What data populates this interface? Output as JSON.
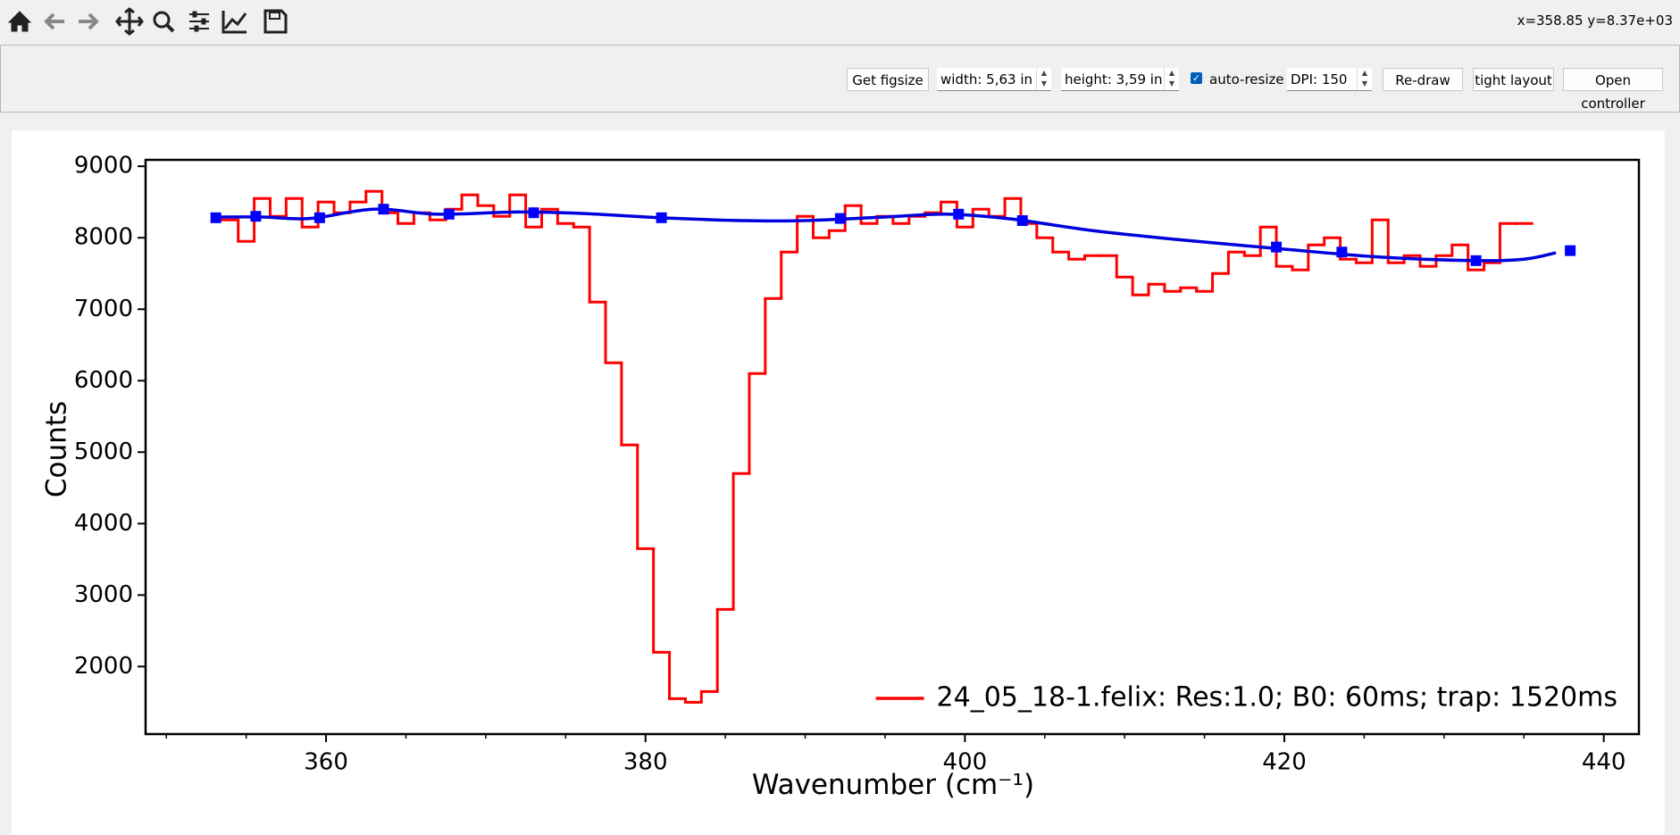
{
  "toolbar": {
    "coordinates": "x=358.85 y=8.37e+03"
  },
  "controls": {
    "get_figsize": "Get figsize",
    "width": "width: 5,63 in",
    "height": "height: 3,59 in",
    "auto_resize": "auto-resize",
    "dpi": "DPI: 150",
    "redraw": "Re-draw",
    "tight_layout": "tight layout",
    "open_controller": "Open controller"
  },
  "chart_data": {
    "type": "line",
    "xlabel": "Wavenumber (cm⁻¹)",
    "ylabel": "Counts",
    "xlim": [
      348.7,
      442.2
    ],
    "xticks": [
      360,
      380,
      400,
      420,
      440
    ],
    "xminorticks": [
      350,
      355,
      365,
      370,
      375,
      385,
      390,
      395,
      405,
      410,
      415,
      425,
      430,
      435
    ],
    "ylim": [
      1055,
      9090
    ],
    "yticks": [
      2000,
      3000,
      4000,
      5000,
      6000,
      7000,
      8000,
      9000
    ],
    "legend": "lower right",
    "series": [
      {
        "name": "24_05_18-1.felix: Res:1.0; B0: 60ms; trap: 1520ms",
        "color": "#ff0000",
        "style": "step",
        "x": [
          354,
          355,
          356,
          357,
          358,
          359,
          360,
          361,
          362,
          363,
          364,
          365,
          366,
          367,
          368,
          369,
          370,
          371,
          372,
          373,
          374,
          375,
          376,
          377,
          378,
          379,
          380,
          381,
          382,
          383,
          384,
          385,
          386,
          387,
          388,
          389,
          390,
          391,
          392,
          393,
          394,
          395,
          396,
          397,
          398,
          399,
          400,
          401,
          402,
          403,
          404,
          405,
          406,
          407,
          408,
          409,
          410,
          411,
          412,
          413,
          414,
          415,
          416,
          417,
          418,
          419,
          420,
          421,
          422,
          423,
          424,
          425,
          426,
          427,
          428,
          429,
          430,
          431,
          432,
          433,
          434,
          435
        ],
        "values": [
          8250,
          7950,
          8550,
          8300,
          8550,
          8150,
          8500,
          8350,
          8500,
          8650,
          8350,
          8200,
          8350,
          8250,
          8400,
          8600,
          8450,
          8300,
          8600,
          8150,
          8400,
          8200,
          8150,
          7100,
          6250,
          5100,
          3650,
          2200,
          1550,
          1500,
          1650,
          2800,
          4700,
          6100,
          7150,
          7800,
          8300,
          8000,
          8100,
          8450,
          8200,
          8300,
          8200,
          8300,
          8350,
          8500,
          8150,
          8400,
          8300,
          8550,
          8200,
          8000,
          7800,
          7700,
          7750,
          7750,
          7450,
          7200,
          7350,
          7250,
          7300,
          7250,
          7500,
          7800,
          7750,
          8150,
          7600,
          7550,
          7900,
          8000,
          7700,
          7650,
          8250,
          7650,
          7750,
          7600,
          7750,
          7900,
          7550,
          7650,
          8200,
          8200
        ]
      },
      {
        "color": "#0000dd",
        "style": "smooth",
        "x": [
          353,
          356,
          359,
          363,
          367,
          372,
          376,
          381,
          386,
          390,
          395,
          399,
          403,
          408,
          414,
          420,
          426,
          432,
          435,
          437
        ],
        "values": [
          8290,
          8290,
          8270,
          8400,
          8330,
          8360,
          8340,
          8280,
          8240,
          8240,
          8290,
          8330,
          8260,
          8100,
          7960,
          7840,
          7730,
          7680,
          7700,
          7790
        ]
      },
      {
        "color": "#0000ff",
        "style": "markers",
        "x": [
          353.1,
          355.6,
          359.6,
          363.6,
          367.7,
          373,
          381,
          392.2,
          399.6,
          403.6,
          419.5,
          423.6,
          432,
          437.9
        ],
        "values": [
          8280,
          8300,
          8280,
          8400,
          8330,
          8350,
          8280,
          8270,
          8330,
          8240,
          7870,
          7800,
          7680,
          7820
        ]
      }
    ]
  }
}
